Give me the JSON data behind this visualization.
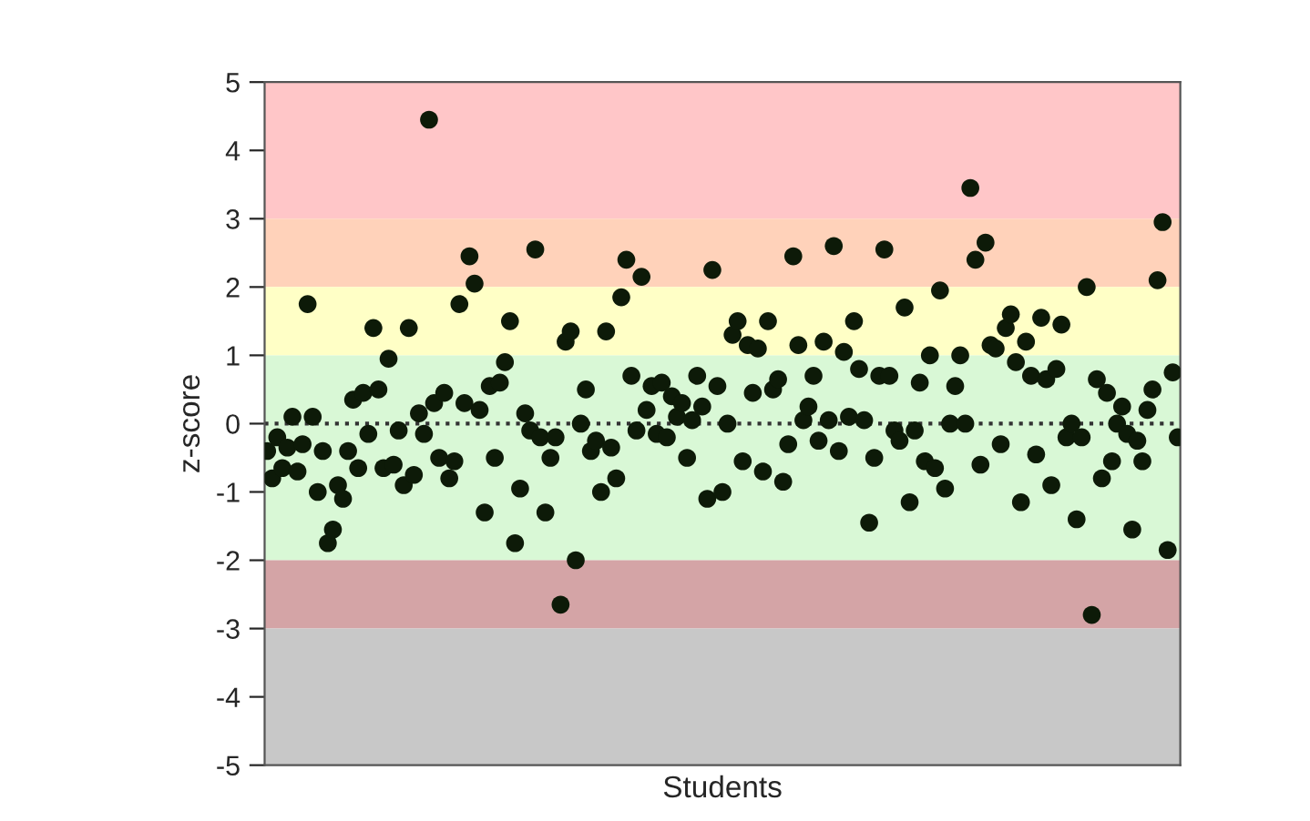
{
  "chart_data": {
    "type": "scatter",
    "xlabel": "Students",
    "ylabel": "z-score",
    "categories": [
      null,
      null,
      null,
      null,
      null,
      null,
      null,
      null,
      null,
      null,
      null,
      null,
      null,
      null,
      null,
      null,
      null,
      null,
      null,
      null,
      null,
      null,
      null,
      null,
      null,
      null,
      null,
      null,
      null,
      null,
      null,
      null,
      null,
      null,
      null,
      null,
      null,
      null,
      null,
      null,
      null,
      null,
      null,
      null,
      null,
      null,
      null,
      null,
      null,
      null,
      null,
      null,
      null,
      null,
      null,
      null,
      null,
      null,
      null,
      null,
      null,
      null,
      null,
      null,
      null,
      null,
      null,
      null,
      null,
      null,
      null,
      null,
      null,
      null,
      null,
      null,
      null,
      null,
      null,
      null,
      null,
      null,
      null,
      null,
      null,
      null,
      null,
      null,
      null,
      null,
      null,
      null,
      null,
      null,
      null,
      null,
      null,
      null,
      null,
      null,
      null,
      null,
      null,
      null,
      null,
      null,
      null,
      null,
      null,
      null,
      null,
      null,
      null,
      null,
      null,
      null,
      null,
      null,
      null,
      null,
      null,
      null,
      null,
      null,
      null,
      null,
      null,
      null,
      null,
      null,
      null,
      null,
      null,
      null,
      null,
      null,
      null,
      null,
      null,
      null,
      null,
      null,
      null,
      null,
      null,
      null,
      null,
      null,
      null,
      null,
      null,
      null,
      null,
      null,
      null,
      null,
      null,
      null,
      null,
      null,
      null,
      null,
      null,
      null,
      null,
      null,
      null,
      null,
      null,
      null,
      null,
      null,
      null,
      null,
      null,
      null,
      null,
      null,
      null,
      null,
      null
    ],
    "series": [
      {
        "color": "#0d1a08",
        "values": [
          -0.4,
          -0.8,
          -0.2,
          -0.65,
          -0.35,
          0.1,
          -0.7,
          -0.3,
          1.75,
          0.1,
          -1.0,
          -0.4,
          -1.75,
          -1.55,
          -0.9,
          -1.1,
          -0.4,
          0.35,
          -0.65,
          0.45,
          -0.15,
          1.4,
          0.5,
          -0.65,
          0.95,
          -0.6,
          -0.1,
          -0.9,
          1.4,
          -0.75,
          0.15,
          -0.15,
          4.45,
          0.3,
          -0.5,
          0.45,
          -0.8,
          -0.55,
          1.75,
          0.3,
          2.45,
          2.05,
          0.2,
          -1.3,
          0.55,
          -0.5,
          0.6,
          0.9,
          1.5,
          -1.75,
          -0.95,
          0.15,
          -0.1,
          2.55,
          -0.2,
          -1.3,
          -0.5,
          -0.2,
          -2.65,
          1.2,
          1.35,
          -2.0,
          0,
          0.5,
          -0.4,
          -0.25,
          -1.0,
          1.35,
          -0.35,
          -0.8,
          1.85,
          2.4,
          0.7,
          -0.1,
          2.15,
          0.2,
          0.55,
          -0.15,
          0.6,
          -0.2,
          0.4,
          0.1,
          0.3,
          -0.5,
          0.05,
          0.7,
          0.25,
          -1.1,
          2.25,
          0.55,
          -1.0,
          0,
          1.3,
          1.5,
          -0.55,
          1.15,
          0.45,
          1.1,
          -0.7,
          1.5,
          0.5,
          0.65,
          -0.85,
          -0.3,
          2.45,
          1.15,
          0.05,
          0.25,
          0.7,
          -0.25,
          1.2,
          0.05,
          2.6,
          -0.4,
          1.05,
          0.1,
          1.5,
          0.8,
          0.05,
          -1.45,
          -0.5,
          0.7,
          2.55,
          0.7,
          -0.1,
          -0.25,
          1.7,
          -1.15,
          -0.1,
          0.6,
          -0.55,
          1.0,
          -0.65,
          1.95,
          -0.95,
          0,
          0.55,
          1.0,
          0,
          3.45,
          2.4,
          -0.6,
          2.65,
          1.15,
          1.1,
          -0.3,
          1.4,
          1.6,
          0.9,
          -1.15,
          1.2,
          0.7,
          -0.45,
          1.55,
          0.65,
          -0.9,
          0.8,
          1.45,
          -0.2,
          0,
          -1.4,
          -0.2,
          2.0,
          -2.8,
          0.65,
          -0.8,
          0.45,
          -0.55,
          0,
          0.25,
          -0.15,
          -1.55,
          -0.25,
          -0.55,
          0.2,
          0.5,
          2.1,
          2.95,
          -1.85,
          0.75,
          -0.2
        ]
      }
    ],
    "marker": "circle",
    "ylim": [
      -5,
      5
    ],
    "yticks": [
      -5,
      -4,
      -3,
      -2,
      -1,
      0,
      1,
      2,
      3,
      4,
      5
    ],
    "tick_labels": "y",
    "bands": [
      {
        "axis": "y",
        "from": 3,
        "to": 5,
        "color": "#ffc6c8"
      },
      {
        "axis": "y",
        "from": 2,
        "to": 3,
        "color": "#ffd2ba"
      },
      {
        "axis": "y",
        "from": 1,
        "to": 2,
        "color": "#ffffc6"
      },
      {
        "axis": "y",
        "from": -2,
        "to": 1,
        "color": "#d9f8d6"
      },
      {
        "axis": "y",
        "from": -3,
        "to": -2,
        "color": "#d4a4a6"
      },
      {
        "axis": "y",
        "from": -5,
        "to": -3,
        "color": "#c8c8c8"
      }
    ],
    "ref_lines": [
      {
        "axis": "y",
        "value": 0,
        "color": "#333333",
        "line_style": "dotted"
      }
    ]
  }
}
